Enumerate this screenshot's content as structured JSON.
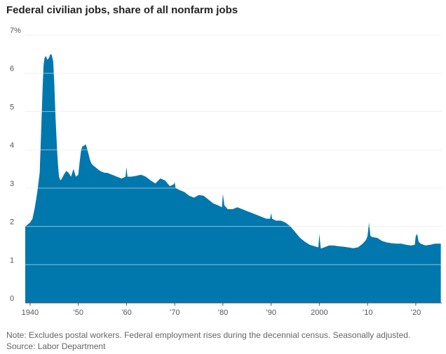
{
  "title": "Federal civilian jobs, share of all nonfarm jobs",
  "note": "Note: Excludes postal workers. Federal employment rises during the decennial census. Seasonally adjusted.",
  "source": "Source: Labor Department",
  "colors": {
    "area": "#0077ad",
    "grid": "#e3e3e3",
    "baseline": "#555555",
    "text": "#555555"
  },
  "chart_data": {
    "type": "area",
    "title": "Federal civilian jobs, share of all nonfarm jobs",
    "xlabel": "",
    "ylabel": "",
    "xlim": [
      1939.0,
      2025.4
    ],
    "ylim": [
      0,
      7
    ],
    "y_ticks": [
      0,
      1,
      2,
      3,
      4,
      5,
      6,
      7
    ],
    "y_tick_labels": [
      "0",
      "1",
      "2",
      "3",
      "4",
      "5",
      "6",
      "7%"
    ],
    "x_ticks": [
      1940,
      1950,
      1960,
      1970,
      1980,
      1990,
      2000,
      2010,
      2020
    ],
    "x_tick_labels": [
      "1940",
      "’50",
      "’60",
      "’70",
      "’80",
      "’90",
      "2000",
      "’10",
      "’20"
    ],
    "grid": true,
    "series": [
      {
        "x": [
          1939.0,
          1939.5,
          1940.0,
          1940.5,
          1941.0,
          1941.5,
          1942.0,
          1942.3,
          1942.6,
          1942.8,
          1943.0,
          1943.3,
          1943.6,
          1943.9,
          1944.2,
          1944.5,
          1944.8,
          1945.0,
          1945.3,
          1945.6,
          1945.8,
          1946.0,
          1946.3,
          1946.6,
          1947.0,
          1947.5,
          1948.0,
          1948.5,
          1949.0,
          1949.5,
          1950.0,
          1950.3,
          1950.6,
          1950.9,
          1951.2,
          1951.5,
          1951.8,
          1952.1,
          1952.4,
          1952.7,
          1953.0,
          1953.5,
          1954.0,
          1954.5,
          1955.0,
          1955.5,
          1956.0,
          1957.0,
          1958.0,
          1959.0,
          1959.8,
          1960.0,
          1960.2,
          1961.0,
          1962.0,
          1963.0,
          1964.0,
          1965.0,
          1966.0,
          1967.0,
          1968.0,
          1969.0,
          1969.8,
          1970.0,
          1970.2,
          1971.0,
          1972.0,
          1973.0,
          1974.0,
          1975.0,
          1976.0,
          1977.0,
          1978.0,
          1979.0,
          1979.8,
          1980.0,
          1980.3,
          1981.0,
          1982.0,
          1983.0,
          1984.0,
          1985.0,
          1986.0,
          1987.0,
          1988.0,
          1989.0,
          1989.8,
          1990.0,
          1990.2,
          1991.0,
          1992.0,
          1993.0,
          1994.0,
          1995.0,
          1996.0,
          1997.0,
          1998.0,
          1999.0,
          1999.8,
          2000.0,
          2000.3,
          2001.0,
          2002.0,
          2003.0,
          2004.0,
          2005.0,
          2006.0,
          2007.0,
          2008.0,
          2009.0,
          2009.7,
          2010.0,
          2010.3,
          2010.6,
          2011.0,
          2012.0,
          2013.0,
          2014.0,
          2015.0,
          2016.0,
          2017.0,
          2018.0,
          2019.0,
          2019.8,
          2020.0,
          2020.3,
          2020.6,
          2021.0,
          2022.0,
          2023.0,
          2024.0,
          2025.2
        ],
        "values": [
          2.0,
          2.05,
          2.1,
          2.2,
          2.5,
          2.9,
          3.4,
          4.5,
          5.6,
          6.2,
          6.4,
          6.45,
          6.35,
          6.4,
          6.5,
          6.48,
          6.3,
          5.8,
          4.8,
          4.0,
          3.6,
          3.3,
          3.2,
          3.25,
          3.35,
          3.45,
          3.4,
          3.3,
          3.5,
          3.3,
          3.35,
          3.7,
          4.0,
          4.1,
          4.1,
          4.15,
          4.05,
          3.9,
          3.75,
          3.65,
          3.6,
          3.55,
          3.5,
          3.45,
          3.42,
          3.4,
          3.4,
          3.35,
          3.3,
          3.25,
          3.3,
          3.55,
          3.3,
          3.3,
          3.32,
          3.35,
          3.3,
          3.2,
          3.12,
          3.25,
          3.2,
          3.05,
          3.1,
          3.15,
          3.0,
          2.95,
          2.9,
          2.8,
          2.75,
          2.82,
          2.8,
          2.7,
          2.6,
          2.55,
          2.5,
          2.85,
          2.55,
          2.45,
          2.45,
          2.5,
          2.45,
          2.4,
          2.35,
          2.3,
          2.25,
          2.2,
          2.2,
          2.35,
          2.2,
          2.15,
          2.15,
          2.1,
          2.0,
          1.85,
          1.7,
          1.6,
          1.52,
          1.48,
          1.45,
          1.8,
          1.42,
          1.45,
          1.5,
          1.5,
          1.48,
          1.47,
          1.45,
          1.43,
          1.45,
          1.55,
          1.65,
          1.75,
          2.1,
          1.75,
          1.72,
          1.7,
          1.62,
          1.58,
          1.56,
          1.55,
          1.55,
          1.52,
          1.5,
          1.52,
          1.75,
          1.8,
          1.6,
          1.55,
          1.5,
          1.52,
          1.55,
          1.55
        ]
      }
    ]
  }
}
